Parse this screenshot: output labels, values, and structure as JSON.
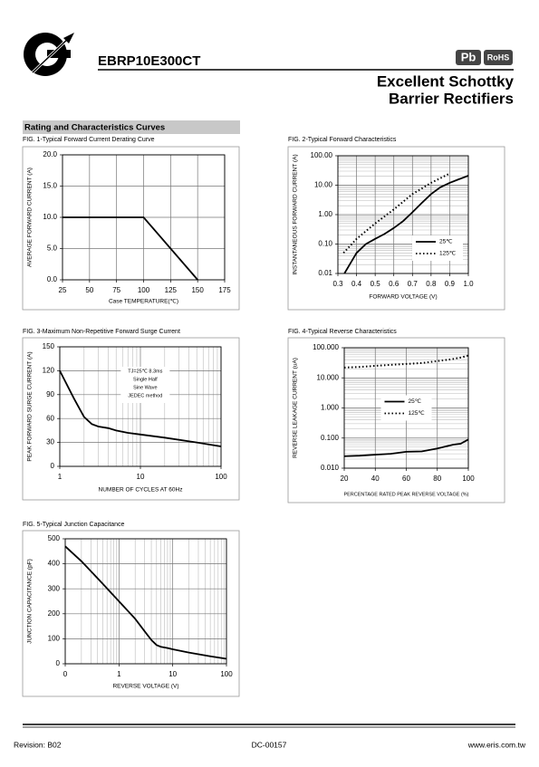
{
  "header": {
    "part_number": "EBRP10E300CT",
    "badge_pb": "Pb",
    "badge_rohs": "RoHS",
    "title_line1": "Excellent Schottky",
    "title_line2": "Barrier Rectifiers"
  },
  "section_title": "Rating and Characteristics Curves",
  "chart_data": [
    {
      "type": "line",
      "title": "FIG. 1-Typical Forward Current Derating Curve",
      "x_label": "Case TEMPERATURE(℃)",
      "y_label": "AVERAGE FORWARD CURRENT (A)",
      "x": [
        25,
        100,
        150
      ],
      "values": [
        10,
        10,
        0
      ],
      "color": "#000000",
      "xlim": [
        25,
        175
      ],
      "xticks": [
        25,
        50,
        75,
        100,
        125,
        150,
        175
      ],
      "ylim": [
        0,
        20
      ],
      "yticks": [
        {
          "value": 0,
          "label": "0.0"
        },
        {
          "value": 5,
          "label": "5.0"
        },
        {
          "value": 10,
          "label": "10.0"
        },
        {
          "value": 15,
          "label": "15.0"
        },
        {
          "value": 20,
          "label": "20.0"
        }
      ],
      "grid": true
    },
    {
      "type": "line",
      "title": "FIG. 2-Typical Forward Characteristics",
      "x_label": "FORWARD VOLTAGE (V)",
      "y_label": "INSTANTANEOUS FORWARD CURRENT (A)",
      "series": [
        {
          "name": "25℃",
          "color": "#000000",
          "style": "solid",
          "x": [
            0.335,
            0.4,
            0.45,
            0.5,
            0.55,
            0.6,
            0.65,
            0.7,
            0.75,
            0.8,
            0.85,
            0.9,
            0.95,
            1.0
          ],
          "values": [
            0.01,
            0.05,
            0.1,
            0.15,
            0.22,
            0.35,
            0.6,
            1.2,
            2.5,
            5,
            8.5,
            12,
            16,
            21
          ]
        },
        {
          "name": "125℃",
          "color": "#000000",
          "style": "dotted",
          "x": [
            0.33,
            0.4,
            0.5,
            0.6,
            0.7,
            0.8,
            0.9
          ],
          "values": [
            0.05,
            0.15,
            0.5,
            1.5,
            5,
            12,
            25
          ]
        }
      ],
      "xlim": [
        0.3,
        1.0
      ],
      "xticks": [
        0.3,
        0.4,
        0.5,
        0.6,
        0.7,
        0.8,
        0.9,
        {
          "value": 1,
          "label": "1.0"
        }
      ],
      "ylim": [
        0.01,
        100
      ],
      "yscale": "log",
      "yticks": [
        0.01,
        {
          "value": 0.1,
          "label": "0.10"
        },
        {
          "value": 1,
          "label": "1.00"
        },
        {
          "value": 10,
          "label": "10.00"
        },
        {
          "value": 100,
          "label": "100.00"
        }
      ],
      "grid": true,
      "legend": "lower right"
    },
    {
      "type": "line",
      "title": "FIG. 3-Maximum Non-Repetitive Forward Surge Current",
      "x_label": "NUMBER OF CYCLES AT 60Hz",
      "y_label": "PEAK FORWARD SURGE CURRENT (A)",
      "annotation": [
        "TJ=25℃ 8.3ms",
        "Single Half",
        "Sine Wave",
        "JEDEC method"
      ],
      "x": [
        1,
        1.5,
        2,
        2.5,
        3,
        4,
        5,
        7,
        10,
        20,
        50,
        100
      ],
      "values": [
        120,
        85,
        62,
        53,
        50,
        48,
        45,
        42,
        40,
        36,
        30,
        25
      ],
      "color": "#000000",
      "xlim": [
        1,
        100
      ],
      "xscale": "log",
      "xticks": [
        1,
        10,
        100
      ],
      "ylim": [
        0,
        150
      ],
      "yticks": [
        0,
        30,
        60,
        90,
        120,
        150
      ],
      "grid": true
    },
    {
      "type": "line",
      "title": "FIG. 4-Typical Reverse Characteristics",
      "x_label": "PERCENTAGE RATED PEAK REVERSE VOLTAGE (%)",
      "y_label": "REVERSE LEAKAGE CURRENT (uA)",
      "series": [
        {
          "name": "25℃",
          "color": "#000000",
          "style": "solid",
          "x": [
            20,
            30,
            40,
            50,
            60,
            70,
            80,
            90,
            95,
            100
          ],
          "values": [
            0.025,
            0.026,
            0.028,
            0.03,
            0.035,
            0.036,
            0.045,
            0.06,
            0.065,
            0.09
          ]
        },
        {
          "name": "125℃",
          "color": "#000000",
          "style": "dotted",
          "x": [
            20,
            30,
            40,
            50,
            60,
            70,
            80,
            90,
            95,
            100
          ],
          "values": [
            22,
            23,
            25,
            27,
            29,
            31,
            36,
            42,
            47,
            55
          ]
        }
      ],
      "xlim": [
        20,
        100
      ],
      "xticks": [
        20,
        40,
        60,
        80,
        100
      ],
      "ylim": [
        0.01,
        100
      ],
      "yscale": "log",
      "yticks": [
        {
          "value": 0.01,
          "label": "0.010"
        },
        {
          "value": 0.1,
          "label": "0.100"
        },
        {
          "value": 1,
          "label": "1.000"
        },
        {
          "value": 10,
          "label": "10.000"
        },
        {
          "value": 100,
          "label": "100.000"
        }
      ],
      "grid": true,
      "legend": "center"
    },
    {
      "type": "line",
      "title": "FIG. 5-Typical Junction Capacitance",
      "x_label": "REVERSE VOLTAGE (V)",
      "y_label": "JUNCTION CAPACITANCE (pF)",
      "x": [
        0.1,
        0.2,
        0.5,
        1,
        2,
        3,
        4,
        5,
        6,
        8,
        10,
        20,
        50,
        100
      ],
      "values": [
        470,
        410,
        320,
        250,
        180,
        130,
        95,
        75,
        68,
        63,
        58,
        45,
        30,
        20
      ],
      "color": "#000000",
      "xlim": [
        0.1,
        100
      ],
      "xscale": "log",
      "xticks": [
        {
          "value": 0.1,
          "label": "0"
        },
        1,
        10,
        100
      ],
      "ylim": [
        0,
        500
      ],
      "yticks": [
        0,
        100,
        200,
        300,
        400,
        500
      ],
      "grid": true
    }
  ],
  "footer": {
    "revision": "Revision: B02",
    "doc_code": "DC-00157",
    "website": "www.eris.com.tw"
  }
}
